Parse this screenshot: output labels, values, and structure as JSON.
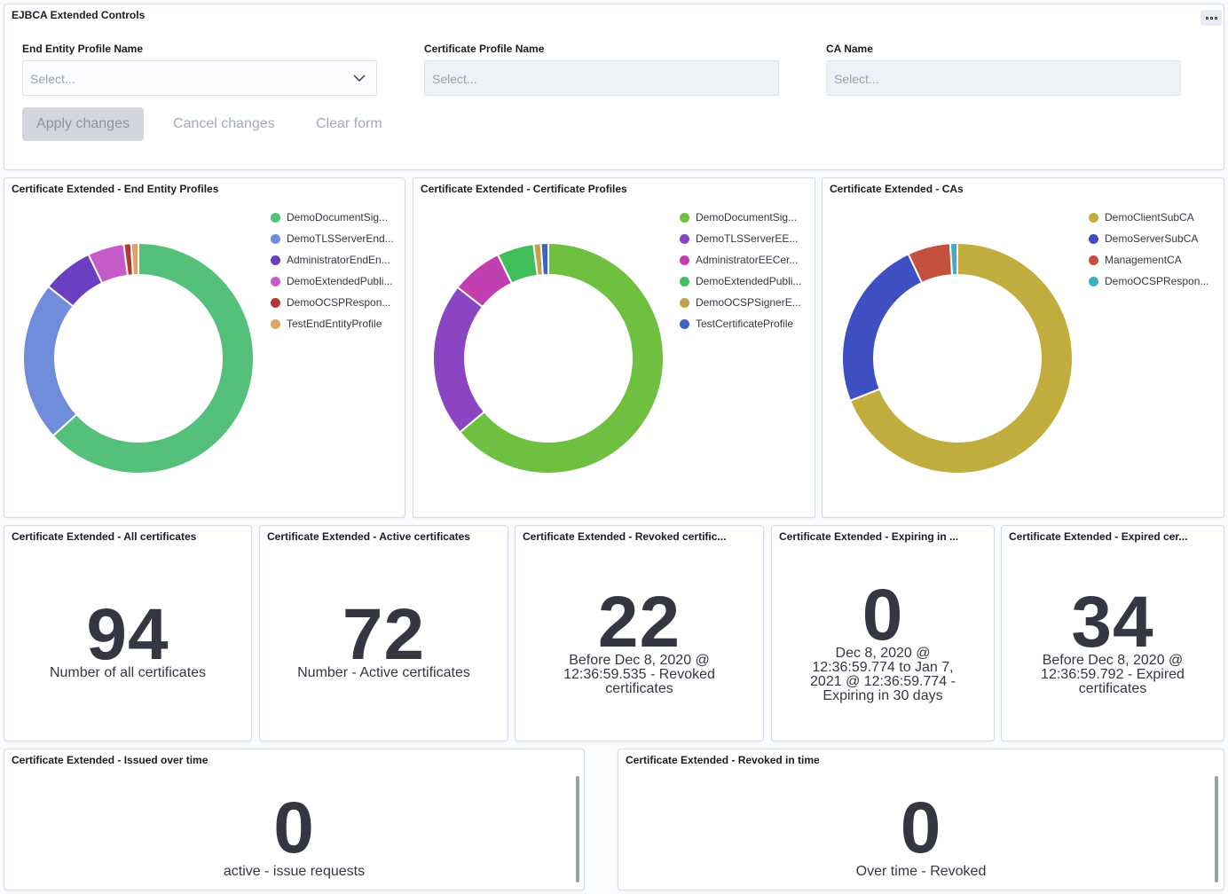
{
  "controls": {
    "title": "EJBCA Extended Controls",
    "fields": [
      {
        "label": "End Entity Profile Name",
        "placeholder": "Select..."
      },
      {
        "label": "Certificate Profile Name",
        "placeholder": "Select..."
      },
      {
        "label": "CA Name",
        "placeholder": "Select..."
      }
    ],
    "apply_label": "Apply changes",
    "cancel_label": "Cancel changes",
    "clear_label": "Clear form"
  },
  "charts": [
    {
      "title": "Certificate Extended - End Entity Profiles",
      "legend": [
        {
          "label": "DemoDocumentSig...",
          "color": "#54c07a"
        },
        {
          "label": "DemoTLSServerEnd...",
          "color": "#6f8ddb"
        },
        {
          "label": "AdministratorEndEn...",
          "color": "#6a3fc0"
        },
        {
          "label": "DemoExtendedPubli...",
          "color": "#c45bc9"
        },
        {
          "label": "DemoOCSPRespon...",
          "color": "#b03a30"
        },
        {
          "label": "TestEndEntityProfile",
          "color": "#e0a266"
        }
      ]
    },
    {
      "title": "Certificate Extended - Certificate Profiles",
      "legend": [
        {
          "label": "DemoDocumentSig...",
          "color": "#6fbf40"
        },
        {
          "label": "DemoTLSServerEE...",
          "color": "#8c45c2"
        },
        {
          "label": "AdministratorEECer...",
          "color": "#c23fb0"
        },
        {
          "label": "DemoExtendedPubli...",
          "color": "#3fbe5a"
        },
        {
          "label": "DemoOCSPSignerE...",
          "color": "#c4a04a"
        },
        {
          "label": "TestCertificateProfile",
          "color": "#3c62c8"
        }
      ]
    },
    {
      "title": "Certificate Extended - CAs",
      "legend": [
        {
          "label": "DemoClientSubCA",
          "color": "#c0ad3e"
        },
        {
          "label": "DemoServerSubCA",
          "color": "#3d4fc1"
        },
        {
          "label": "ManagementCA",
          "color": "#c4513d"
        },
        {
          "label": "DemoOCSPRespon...",
          "color": "#3bafc4"
        }
      ]
    }
  ],
  "chart_data": [
    {
      "type": "pie",
      "title": "Certificate Extended - End Entity Profiles",
      "categories": [
        "DemoDocumentSig...",
        "DemoTLSServerEnd...",
        "AdministratorEndEn...",
        "DemoExtendedPubli...",
        "DemoOCSPRespon...",
        "TestEndEntityProfile"
      ],
      "values": [
        62,
        22,
        7,
        5,
        1,
        1
      ]
    },
    {
      "type": "pie",
      "title": "Certificate Extended - Certificate Profiles",
      "categories": [
        "DemoDocumentSig...",
        "DemoTLSServerEE...",
        "AdministratorEECer...",
        "DemoExtendedPubli...",
        "DemoOCSPSignerE...",
        "TestCertificateProfile"
      ],
      "values": [
        62,
        21,
        7,
        5,
        1,
        1
      ]
    },
    {
      "type": "pie",
      "title": "Certificate Extended - CAs",
      "categories": [
        "DemoClientSubCA",
        "DemoServerSubCA",
        "ManagementCA",
        "DemoOCSPRespon..."
      ],
      "values": [
        69,
        24,
        6,
        1
      ]
    }
  ],
  "metrics": [
    {
      "title": "Certificate Extended - All certificates",
      "value": "94",
      "lines": [
        "Number of all certificates"
      ]
    },
    {
      "title": "Certificate Extended - Active certificates",
      "value": "72",
      "lines": [
        "Number - Active certificates"
      ]
    },
    {
      "title": "Certificate Extended - Revoked certific...",
      "value": "22",
      "lines": [
        "Before Dec 8, 2020 @",
        "12:36:59.535 - Revoked",
        "certificates"
      ]
    },
    {
      "title": "Certificate Extended - Expiring in ...",
      "value": "0",
      "lines": [
        "Dec 8, 2020 @",
        "12:36:59.774 to Jan 7,",
        "2021 @ 12:36:59.774 -",
        "Expiring in 30 days"
      ]
    },
    {
      "title": "Certificate Extended - Expired cer...",
      "value": "34",
      "lines": [
        "Before Dec 8, 2020 @",
        "12:36:59.792 - Expired",
        "certificates"
      ]
    },
    {
      "title": "Certificate Extended - Issued over time",
      "value": "0",
      "lines": [
        "active - issue requests"
      ]
    },
    {
      "title": "Certificate Extended - Revoked in time",
      "value": "0",
      "lines": [
        "Over time - Revoked"
      ]
    }
  ]
}
